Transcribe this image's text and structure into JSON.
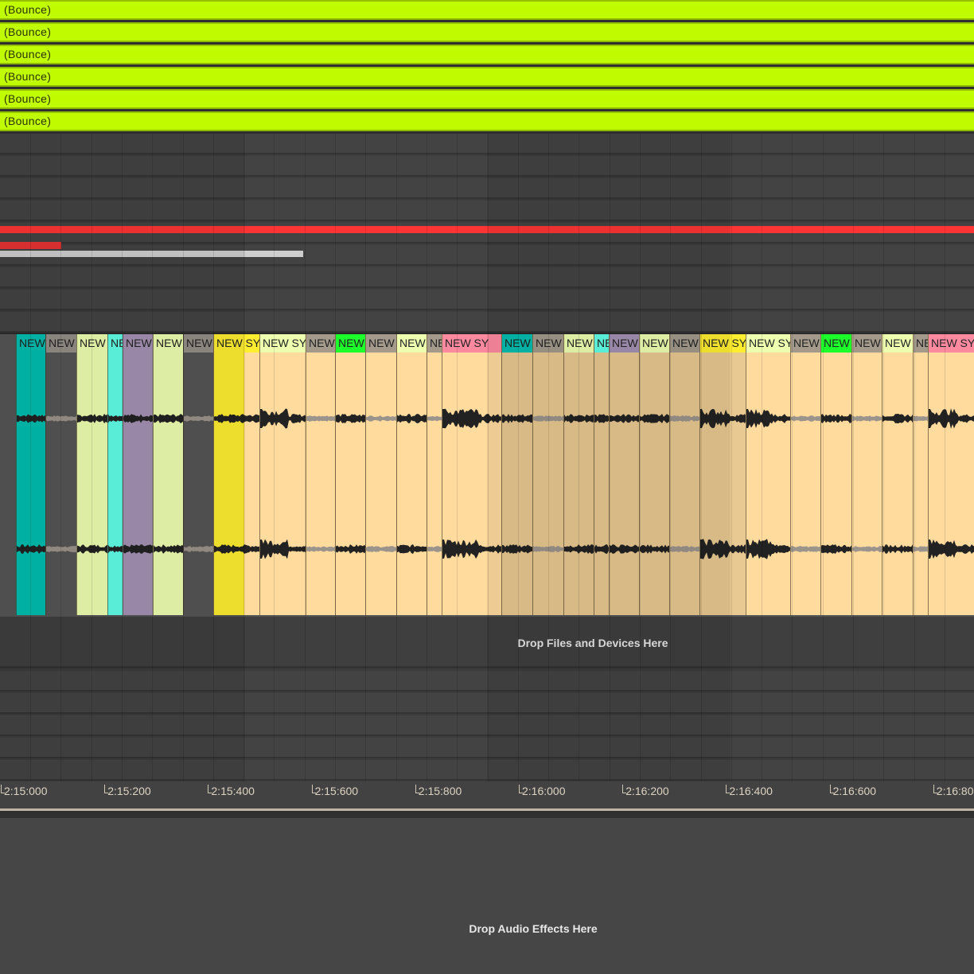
{
  "bounce_tracks": [
    "(Bounce)",
    "(Bounce)",
    "(Bounce)",
    "(Bounce)",
    "(Bounce)",
    "(Bounce)"
  ],
  "clips": [
    {
      "label": "NEW",
      "color": "#00bfb0",
      "body": "#00bfb0"
    },
    {
      "label": "NEW",
      "color": "#958f88",
      "body": "#555555"
    },
    {
      "label": "NEW",
      "color": "#eeffb0",
      "body": "#eeffb0"
    },
    {
      "label": "NE",
      "color": "#60ffe8",
      "body": "#60ffe8"
    },
    {
      "label": "NEW",
      "color": "#a592b4",
      "body": "#a592b4"
    },
    {
      "label": "NEW",
      "color": "#eeffb0",
      "body": "#eeffb0"
    },
    {
      "label": "NEW",
      "color": "#958f88",
      "body": "#555555"
    },
    {
      "label": "NEW SY",
      "color": "#ffee30",
      "body": "#ffee30"
    },
    {
      "label": "NEW SY",
      "color": "#eeffb0",
      "body": "#ffdb9e"
    },
    {
      "label": "NEW",
      "color": "#a39a8c",
      "body": "#ffdb9e"
    },
    {
      "label": "NEW",
      "color": "#1dff2a",
      "body": "#ffdb9e"
    },
    {
      "label": "NEW",
      "color": "#a39a8c",
      "body": "#ffdb9e"
    },
    {
      "label": "NEW",
      "color": "#eeffb0",
      "body": "#ffdb9e"
    },
    {
      "label": "NE",
      "color": "#a39a8c",
      "body": "#ffdb9e"
    },
    {
      "label": "NEW SY",
      "color": "#ff8aa0",
      "body": "#ffdb9e"
    },
    {
      "label": "NEW",
      "color": "#00bfb0",
      "body": "#e9c992"
    },
    {
      "label": "NEW",
      "color": "#a39a8c",
      "body": "#e9c992"
    },
    {
      "label": "NEW",
      "color": "#eeffb0",
      "body": "#e9c992"
    },
    {
      "label": "NE",
      "color": "#60ffe8",
      "body": "#e9c992"
    },
    {
      "label": "NEW",
      "color": "#a592b4",
      "body": "#e9c992"
    },
    {
      "label": "NEW",
      "color": "#eeffb0",
      "body": "#e9c992"
    },
    {
      "label": "NEW",
      "color": "#a39a8c",
      "body": "#e9c992"
    },
    {
      "label": "NEW SY",
      "color": "#ffee30",
      "body": "#e9c992"
    },
    {
      "label": "NEW SY",
      "color": "#eeffb0",
      "body": "#ffdb9e"
    },
    {
      "label": "NEW",
      "color": "#a39a8c",
      "body": "#ffdb9e"
    },
    {
      "label": "NEW",
      "color": "#1dff2a",
      "body": "#ffdb9e"
    },
    {
      "label": "NEW",
      "color": "#a39a8c",
      "body": "#ffdb9e"
    },
    {
      "label": "NEW",
      "color": "#eeffb0",
      "body": "#ffdb9e"
    },
    {
      "label": "NE",
      "color": "#a39a8c",
      "body": "#ffdb9e"
    },
    {
      "label": "NEW SY",
      "color": "#ff8aa0",
      "body": "#ffdb9e"
    }
  ],
  "drop_files": "Drop Files and Devices Here",
  "drop_effects": "Drop Audio Effects Here",
  "ruler": [
    "2:15:000",
    "2:15:200",
    "2:15:400",
    "2:15:600",
    "2:15:800",
    "2:16:000",
    "2:16:200",
    "2:16:400",
    "2:16:600",
    "2:16:800"
  ],
  "colors": {
    "bounce": "#c0fb00",
    "red": "#ff3333",
    "accent_gray": "#cfcfcf"
  }
}
